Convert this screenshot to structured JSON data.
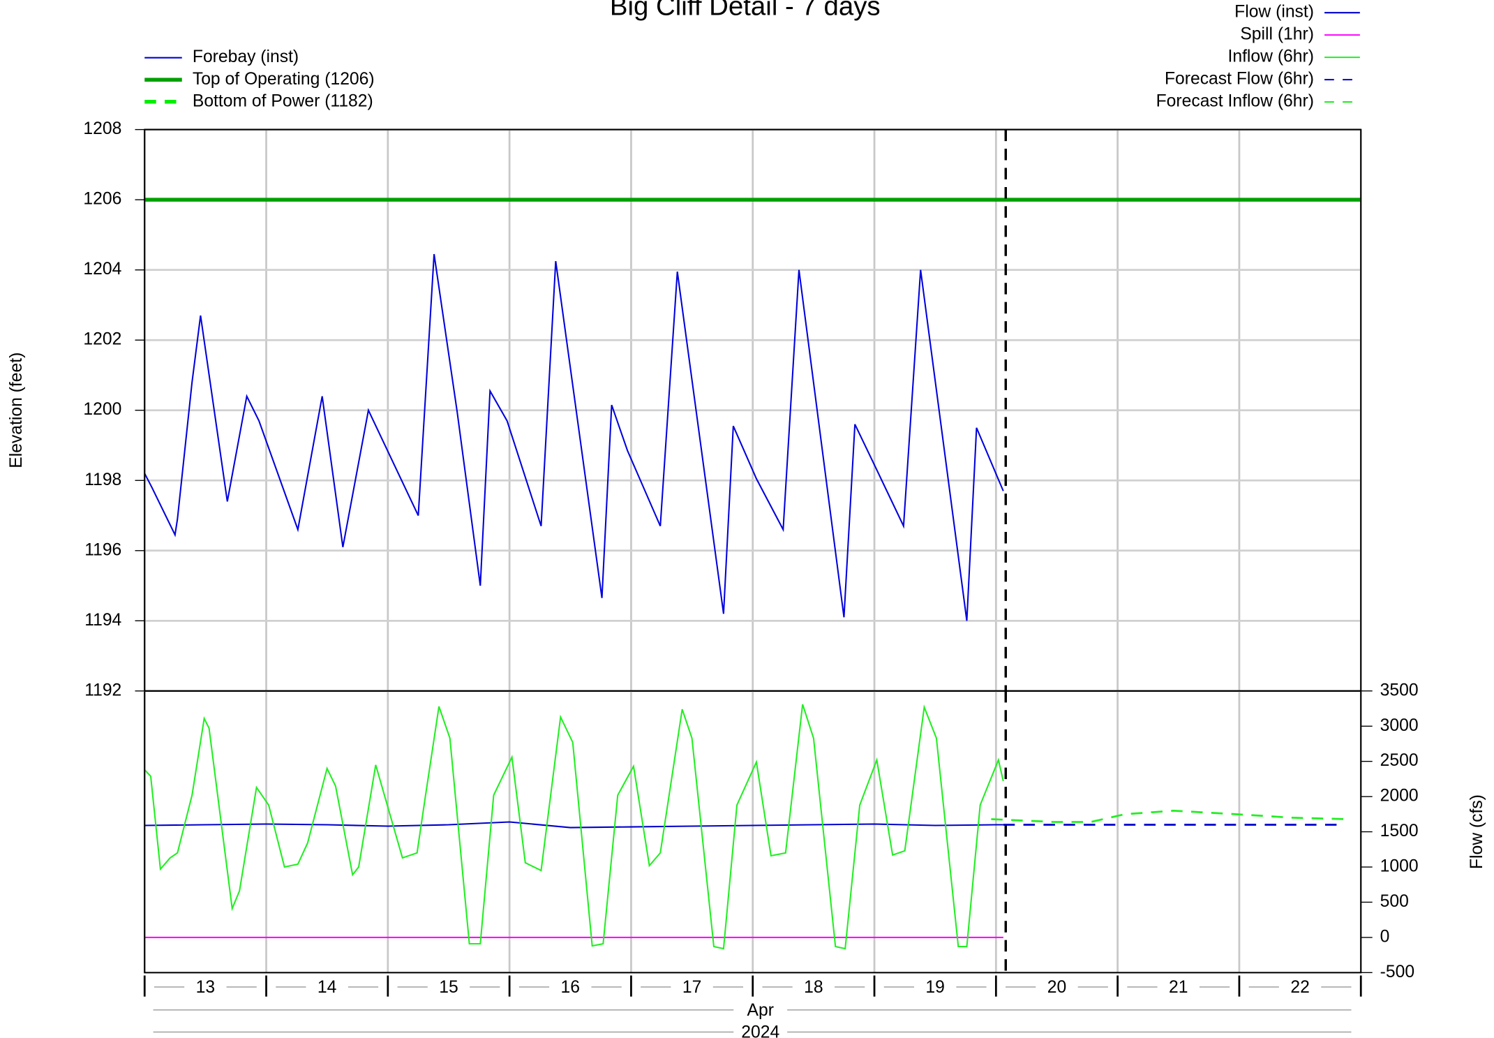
{
  "chart_data": [
    {
      "type": "line",
      "title": "Big Cliff Detail - 7 days",
      "y_label": "Elevation (feet)",
      "xlim": [
        13,
        23
      ],
      "xticks": [
        13,
        14,
        15,
        16,
        17,
        18,
        19,
        20,
        21,
        22,
        23
      ],
      "ylim": [
        1192,
        1208
      ],
      "yticks": [
        1192,
        1194,
        1196,
        1198,
        1200,
        1202,
        1204,
        1206,
        1208
      ],
      "grid": true,
      "legend": "top-left",
      "marker_x": 20.08,
      "series": [
        {
          "name": "Forebay (inst)",
          "color": "#0000dd",
          "style": "solid",
          "x": [
            13.0,
            13.06,
            13.25,
            13.27,
            13.39,
            13.46,
            13.68,
            13.84,
            13.94,
            14.26,
            14.46,
            14.63,
            14.84,
            15.25,
            15.38,
            15.57,
            15.76,
            15.84,
            15.98,
            16.26,
            16.38,
            16.76,
            16.84,
            16.97,
            17.24,
            17.38,
            17.76,
            17.84,
            18.03,
            18.25,
            18.38,
            18.75,
            18.84,
            19.02,
            19.24,
            19.38,
            19.76,
            19.84,
            20.06
          ],
          "values": [
            1198.2,
            1197.8,
            1196.45,
            1196.9,
            1200.8,
            1202.7,
            1197.4,
            1200.4,
            1199.7,
            1196.6,
            1200.4,
            1196.1,
            1200,
            1197.0,
            1204.45,
            1199.95,
            1195.0,
            1200.55,
            1199.7,
            1196.7,
            1204.25,
            1194.65,
            1200.15,
            1198.85,
            1196.7,
            1203.95,
            1194.2,
            1199.55,
            1198.05,
            1196.6,
            1204.0,
            1194.1,
            1199.6,
            1198.3,
            1196.7,
            1204.0,
            1194.0,
            1199.5,
            1197.7
          ]
        }
      ],
      "reference_lines": [
        {
          "name": "Top of Operating (1206)",
          "value": 1206,
          "color": "#00a000",
          "style": "thick"
        },
        {
          "name": "Bottom of Power (1182)",
          "value": 1182,
          "color": "#00ee00",
          "style": "dashed"
        }
      ]
    },
    {
      "type": "line",
      "y_label": "Flow (cfs)",
      "legend": "top-right",
      "xlim": [
        13,
        23
      ],
      "xticks": [
        13,
        14,
        15,
        16,
        17,
        18,
        19,
        20,
        21,
        22,
        23
      ],
      "day_labels": [
        "13",
        "14",
        "15",
        "16",
        "17",
        "18",
        "19",
        "20",
        "21",
        "22"
      ],
      "month": "Apr",
      "year": "2024",
      "y2lim": [
        -500,
        3500
      ],
      "y2ticks": [
        -500,
        0,
        500,
        1000,
        1500,
        2000,
        2500,
        3000,
        3500
      ],
      "grid": true,
      "marker_x": 20.08,
      "series": [
        {
          "name": "Flow (inst)",
          "color": "#0000cc",
          "style": "solid",
          "axis": "y2",
          "x": [
            13,
            13.5,
            14,
            14.5,
            15,
            15.5,
            16,
            16.5,
            17,
            17.5,
            18,
            18.5,
            19,
            19.5,
            20,
            20.06
          ],
          "values": [
            1590,
            1600,
            1610,
            1600,
            1580,
            1600,
            1640,
            1560,
            1570,
            1580,
            1590,
            1600,
            1610,
            1590,
            1600,
            1600
          ]
        },
        {
          "name": "Spill (1hr)",
          "color": "#ff00ff",
          "style": "solid",
          "axis": "y2",
          "x": [
            13,
            20.06
          ],
          "values": [
            0,
            0
          ]
        },
        {
          "name": "Inflow (6hr)",
          "color": "#22ee22",
          "style": "solid",
          "axis": "y2",
          "x": [
            13.0,
            13.05,
            13.13,
            13.21,
            13.27,
            13.39,
            13.49,
            13.53,
            13.72,
            13.78,
            13.92,
            14.02,
            14.15,
            14.26,
            14.34,
            14.5,
            14.57,
            14.71,
            14.76,
            14.9,
            15.12,
            15.24,
            15.31,
            15.42,
            15.51,
            15.67,
            15.76,
            15.87,
            16.02,
            16.13,
            16.26,
            16.42,
            16.52,
            16.68,
            16.77,
            16.89,
            17.02,
            17.15,
            17.24,
            17.42,
            17.5,
            17.68,
            17.76,
            17.87,
            18.03,
            18.15,
            18.27,
            18.41,
            18.5,
            18.68,
            18.76,
            18.88,
            19.02,
            19.15,
            19.25,
            19.41,
            19.51,
            19.69,
            19.76,
            19.87,
            20.02,
            20.06
          ],
          "values": [
            2380,
            2290,
            970,
            1130,
            1200,
            2020,
            3110,
            2970,
            410,
            660,
            2130,
            1880,
            1000,
            1040,
            1340,
            2400,
            2150,
            890,
            1000,
            2450,
            1130,
            1200,
            2020,
            3280,
            2830,
            -90,
            -90,
            2020,
            2560,
            1060,
            950,
            3130,
            2770,
            -120,
            -90,
            2020,
            2430,
            1020,
            1200,
            3240,
            2830,
            -130,
            -160,
            1880,
            2490,
            1160,
            1200,
            3310,
            2830,
            -130,
            -160,
            1880,
            2520,
            1170,
            1230,
            3270,
            2830,
            -130,
            -130,
            1880,
            2520,
            2220
          ]
        },
        {
          "name": "Forecast Flow (6hr)",
          "color": "#0000cc",
          "style": "dashed",
          "axis": "y2",
          "x": [
            20.06,
            22.87
          ],
          "values": [
            1600,
            1600
          ]
        },
        {
          "name": "Forecast Inflow (6hr)",
          "color": "#22ee22",
          "style": "dashed",
          "axis": "y2",
          "x": [
            19.96,
            20.47,
            20.78,
            21.06,
            21.46,
            21.97,
            22.44,
            22.87
          ],
          "values": [
            1680,
            1640,
            1640,
            1750,
            1800,
            1750,
            1700,
            1680
          ]
        }
      ]
    }
  ]
}
